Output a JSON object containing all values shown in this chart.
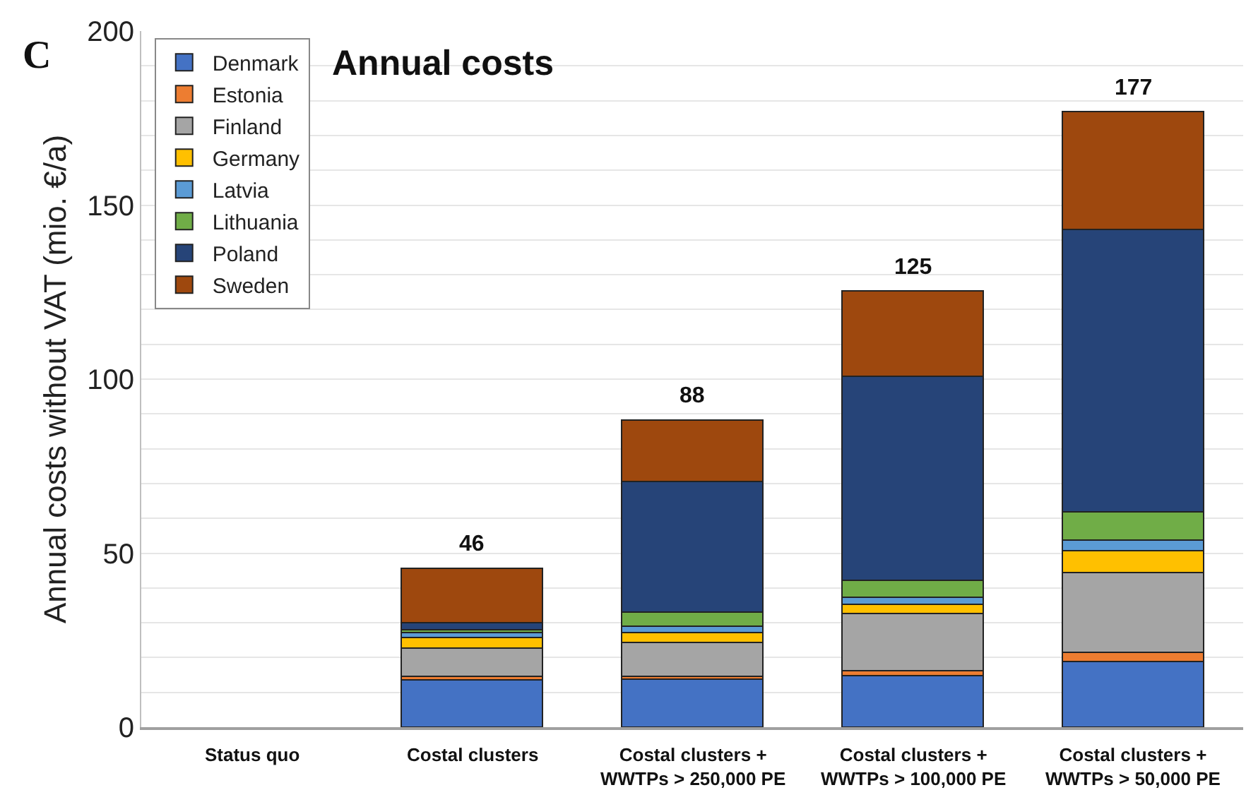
{
  "chart_data": {
    "type": "bar",
    "stacked": true,
    "title": "Annual costs",
    "ylabel": "Annual costs without VAT (mio. €/a)",
    "annotations": [
      "C"
    ],
    "categories": [
      "Status quo",
      "Costal clusters",
      "Costal clusters +\nWWTPs > 250,000 PE",
      "Costal clusters +\nWWTPs > 100,000 PE",
      "Costal clusters +\nWWTPs > 50,000 PE"
    ],
    "series": [
      {
        "name": "Denmark",
        "color": "#4472c4",
        "values": [
          null,
          13.5,
          13.7,
          14.9,
          18.9
        ]
      },
      {
        "name": "Estonia",
        "color": "#ed7d31",
        "values": [
          null,
          1.2,
          1.0,
          1.3,
          2.7
        ]
      },
      {
        "name": "Finland",
        "color": "#a5a5a5",
        "values": [
          null,
          8.1,
          9.6,
          16.5,
          22.9
        ]
      },
      {
        "name": "Germany",
        "color": "#ffc000",
        "values": [
          null,
          2.9,
          2.8,
          2.6,
          6.2
        ]
      },
      {
        "name": "Latvia",
        "color": "#5b9bd5",
        "values": [
          null,
          1.4,
          2.0,
          2.1,
          3.0
        ]
      },
      {
        "name": "Lithuania",
        "color": "#70ad47",
        "values": [
          null,
          0.9,
          4.0,
          4.7,
          8.2
        ]
      },
      {
        "name": "Poland",
        "color": "#264478",
        "values": [
          null,
          2.1,
          37.5,
          58.8,
          81.2
        ]
      },
      {
        "name": "Sweden",
        "color": "#9e480e",
        "values": [
          null,
          15.6,
          17.7,
          24.5,
          33.8
        ]
      }
    ],
    "totals": [
      null,
      "46",
      "88",
      "125",
      "177"
    ],
    "ylim": [
      0,
      200
    ],
    "yticks": [
      0,
      {
        "value": 10,
        "label": null
      },
      {
        "value": 20,
        "label": null
      },
      {
        "value": 30,
        "label": null
      },
      {
        "value": 40,
        "label": null
      },
      50,
      {
        "value": 60,
        "label": null
      },
      {
        "value": 70,
        "label": null
      },
      {
        "value": 80,
        "label": null
      },
      {
        "value": 90,
        "label": null
      },
      100,
      {
        "value": 110,
        "label": null
      },
      {
        "value": 120,
        "label": null
      },
      {
        "value": 130,
        "label": null
      },
      {
        "value": 140,
        "label": null
      },
      150,
      {
        "value": 160,
        "label": null
      },
      {
        "value": 170,
        "label": null
      },
      {
        "value": 180,
        "label": null
      },
      {
        "value": 190,
        "label": null
      },
      200
    ],
    "grid": "y",
    "legend": "top left"
  }
}
